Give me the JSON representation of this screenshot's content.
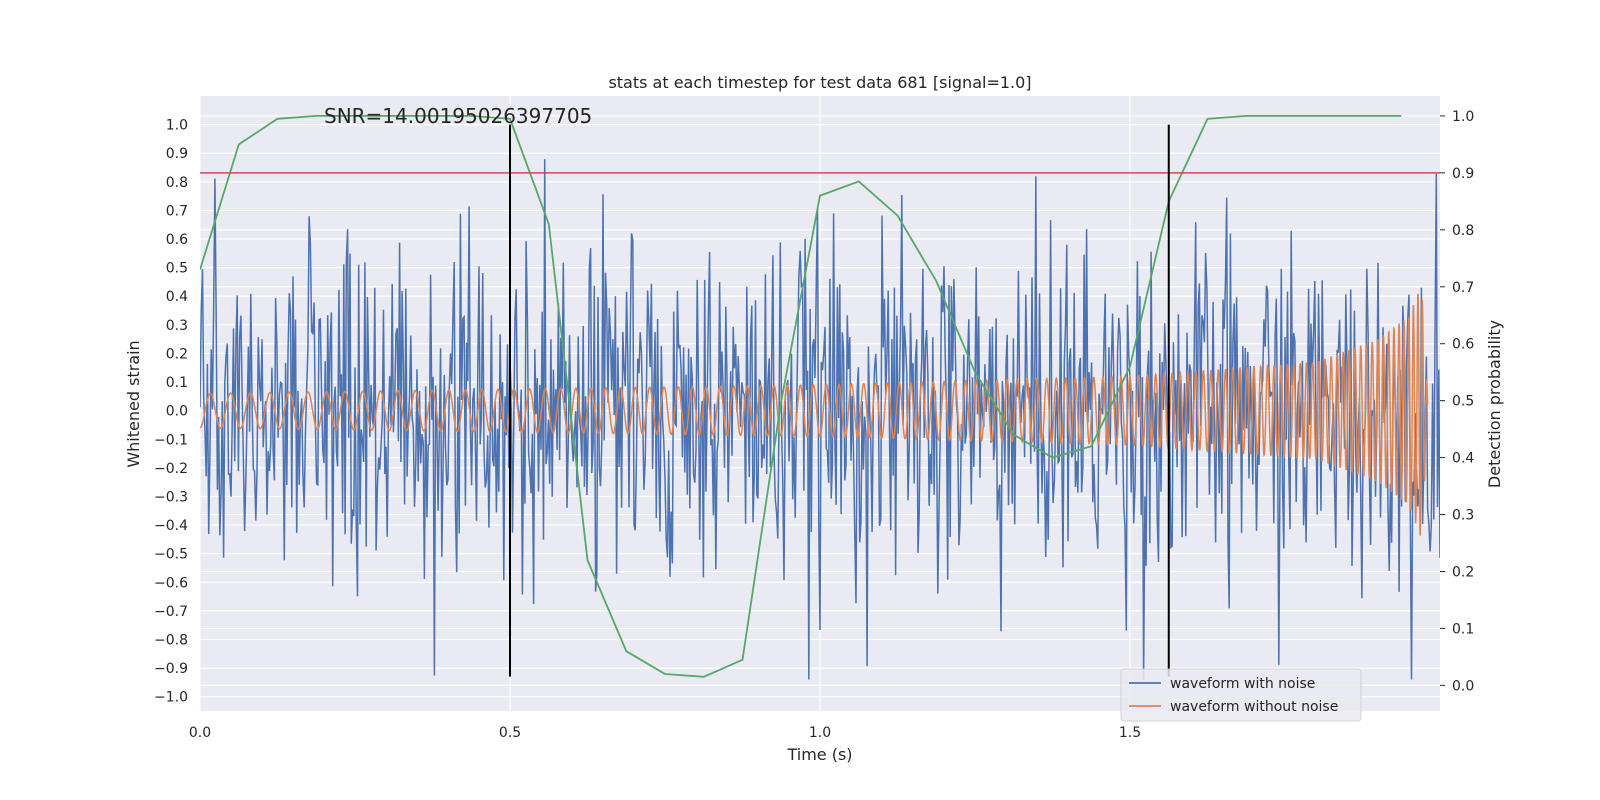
{
  "chart_data": {
    "type": "line",
    "title": "stats at each timestep for test data 681 [signal=1.0]",
    "annotation": "SNR=14.00195026397705",
    "xlabel": "Time (s)",
    "ylabel": "Whitened strain",
    "y2label": "Detection probability",
    "xlim": [
      0.0,
      2.0
    ],
    "ylim": [
      -1.05,
      1.1
    ],
    "y2lim": [
      -0.045,
      1.035
    ],
    "xticks": [
      0.0,
      0.5,
      1.0,
      1.5
    ],
    "xtick_labels": [
      "0.0",
      "0.5",
      "1.0",
      "1.5"
    ],
    "yticks": [
      -1.0,
      -0.9,
      -0.8,
      -0.7,
      -0.6,
      -0.5,
      -0.4,
      -0.3,
      -0.2,
      -0.1,
      0.0,
      0.1,
      0.2,
      0.3,
      0.4,
      0.5,
      0.6,
      0.7,
      0.8,
      0.9,
      1.0
    ],
    "ytick_labels": [
      "−1.0",
      "−0.9",
      "−0.8",
      "−0.7",
      "−0.6",
      "−0.5",
      "−0.4",
      "−0.3",
      "−0.2",
      "−0.1",
      "0.0",
      "0.1",
      "0.2",
      "0.3",
      "0.4",
      "0.5",
      "0.6",
      "0.7",
      "0.8",
      "0.9",
      "1.0"
    ],
    "y2ticks": [
      0.0,
      0.1,
      0.2,
      0.3,
      0.4,
      0.5,
      0.6,
      0.7,
      0.8,
      0.9,
      1.0
    ],
    "y2tick_labels": [
      "0.0",
      "0.1",
      "0.2",
      "0.3",
      "0.4",
      "0.5",
      "0.6",
      "0.7",
      "0.8",
      "0.9",
      "1.0"
    ],
    "grid": true,
    "legend_placement": "lower-right",
    "colors": {
      "noisy": "#4c72b0",
      "clean": "#dd8452",
      "probability": "#55a868",
      "threshold": "#c44e52",
      "markers": "#000000",
      "background": "#eaeaf2"
    },
    "series": [
      {
        "name": "waveform with noise",
        "kind": "noise",
        "amplitude": 0.85
      },
      {
        "name": "waveform without noise",
        "kind": "chirp",
        "envelope": {
          "x": [
            0.0,
            0.5,
            1.0,
            1.5,
            1.8,
            1.9,
            1.95,
            1.97,
            1.98
          ],
          "y": [
            0.06,
            0.075,
            0.09,
            0.12,
            0.17,
            0.25,
            0.33,
            0.45,
            0.05
          ]
        },
        "frequency": {
          "x": [
            0.0,
            1.0,
            1.5,
            1.9,
            1.97
          ],
          "y": [
            30,
            48,
            70,
            110,
            140
          ]
        }
      },
      {
        "name": "detection probability",
        "axis": "right",
        "x": [
          0.0,
          0.0625,
          0.125,
          0.1875,
          0.25,
          0.3125,
          0.375,
          0.4375,
          0.5,
          0.5625,
          0.625,
          0.6875,
          0.75,
          0.8125,
          0.875,
          0.9375,
          1.0,
          1.0625,
          1.125,
          1.1875,
          1.25,
          1.3125,
          1.375,
          1.4375,
          1.5,
          1.5625,
          1.625,
          1.6875,
          1.75,
          1.8125,
          1.875,
          1.9375
        ],
        "y": [
          0.73,
          0.95,
          0.995,
          1.0,
          1.0,
          1.0,
          1.0,
          1.0,
          0.995,
          0.81,
          0.22,
          0.06,
          0.02,
          0.015,
          0.045,
          0.5,
          0.86,
          0.885,
          0.825,
          0.71,
          0.55,
          0.44,
          0.4,
          0.42,
          0.56,
          0.85,
          0.995,
          1.0,
          1.0,
          1.0,
          1.0,
          1.0
        ]
      }
    ],
    "threshold_line": {
      "axis": "right",
      "y": 0.9
    },
    "vertical_markers": [
      {
        "x": 0.5,
        "ymin": -0.93,
        "ymax": 1.0
      },
      {
        "x": 1.5625,
        "ymin": -0.93,
        "ymax": 1.0
      }
    ]
  }
}
